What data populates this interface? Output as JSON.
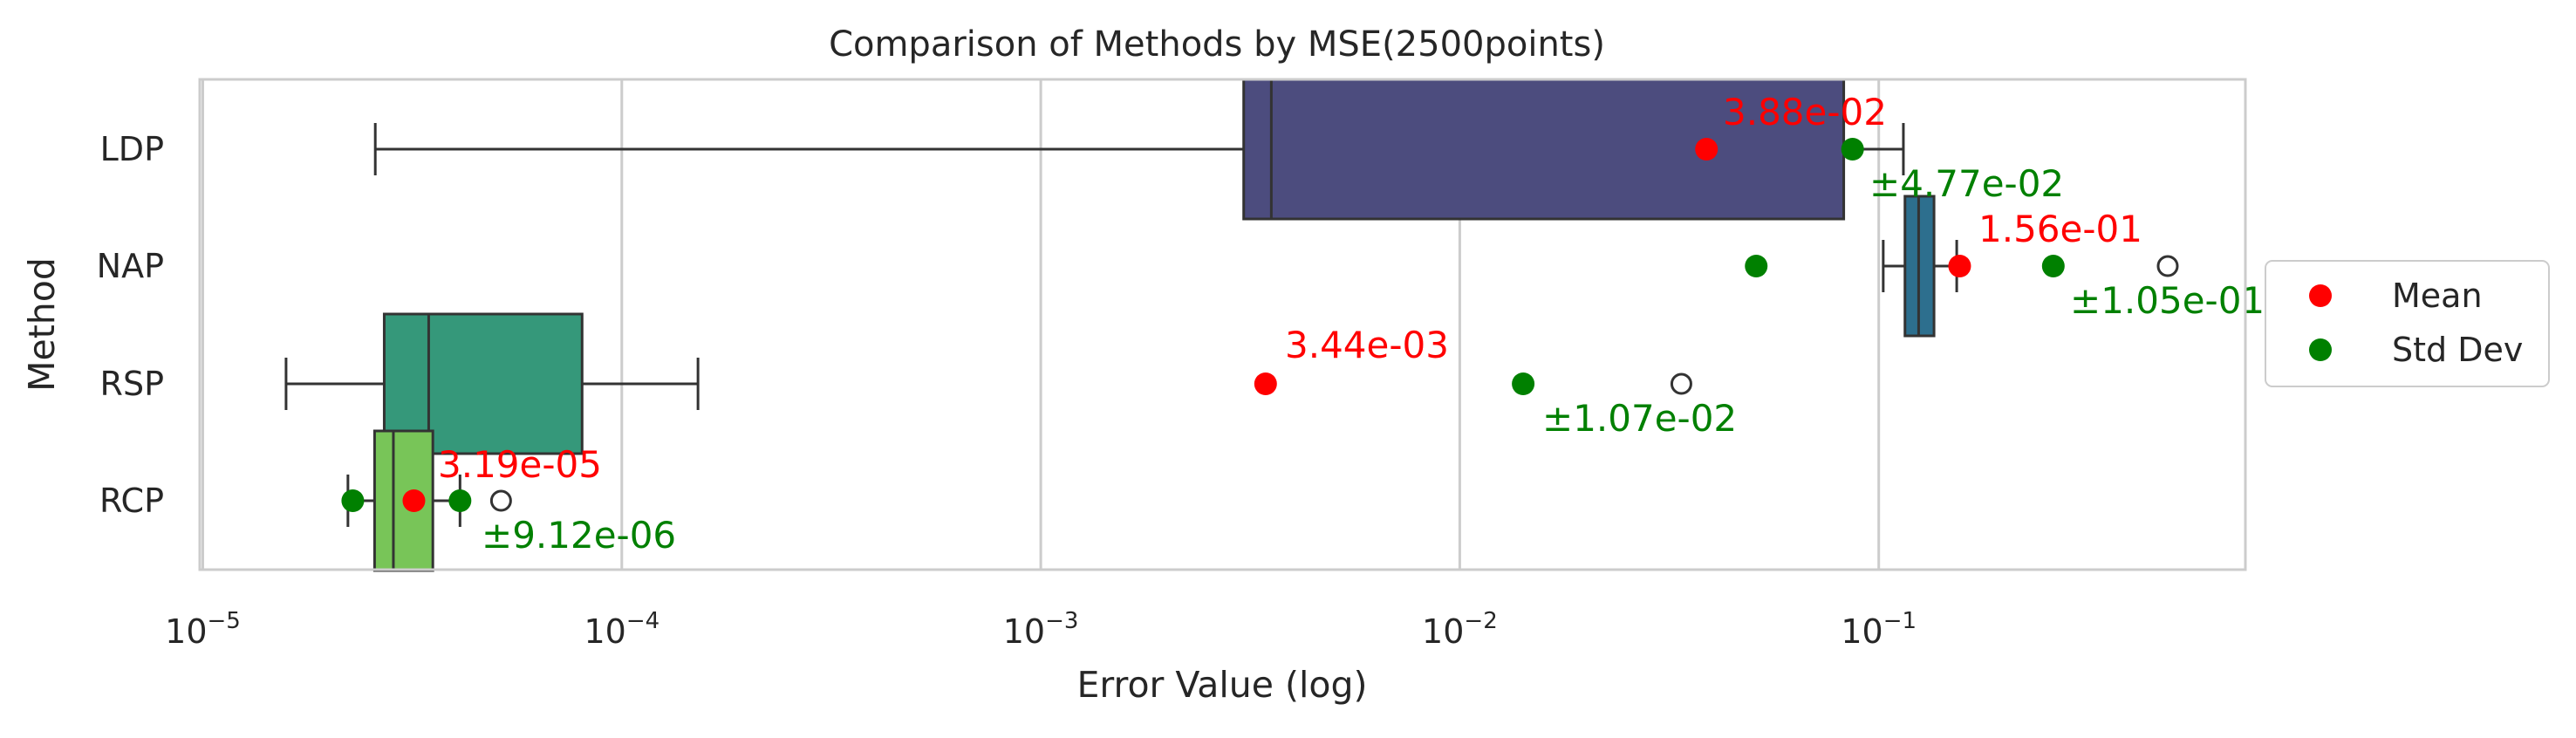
{
  "chart_data": {
    "type": "boxplot",
    "title": "Comparison of Methods by MSE(2500points)",
    "xlabel": "Error Value (log)",
    "ylabel": "Method",
    "xscale": "log",
    "xlim": [
      9.5e-06,
      0.9
    ],
    "x_ticks": [
      {
        "value": 1e-05,
        "base": "10",
        "exp": "−5"
      },
      {
        "value": 0.0001,
        "base": "10",
        "exp": "−4"
      },
      {
        "value": 0.001,
        "base": "10",
        "exp": "−3"
      },
      {
        "value": 0.01,
        "base": "10",
        "exp": "−2"
      },
      {
        "value": 0.1,
        "base": "10",
        "exp": "−1"
      }
    ],
    "grid": true,
    "legend_position": "right, outside",
    "legend": [
      {
        "label": "Mean",
        "color": "#ff0000"
      },
      {
        "label": "Std Dev",
        "color": "#008000"
      }
    ],
    "categories": [
      "LDP",
      "NAP",
      "RSP",
      "RCP"
    ],
    "boxes": [
      {
        "category": "LDP",
        "color": "#4c4c7e",
        "whisker_low": 2.58e-05,
        "q1": 0.00305,
        "median": 0.00355,
        "q3": 0.0825,
        "whisker_high": 0.1145,
        "outliers": [],
        "mean": 0.0388,
        "mean_label": "3.88e-02",
        "std_points": [
          0.0866
        ],
        "std_label": "±4.77e-02"
      },
      {
        "category": "NAP",
        "color": "#2d6f8e",
        "whisker_low": 0.1025,
        "q1": 0.1155,
        "median": 0.1245,
        "q3": 0.1355,
        "whisker_high": 0.1535,
        "outliers": [
          0.4895
        ],
        "mean": 0.156,
        "mean_label": "1.56e-01",
        "std_points": [
          0.051,
          0.261
        ],
        "std_label": "±1.05e-01"
      },
      {
        "category": "RSP",
        "color": "#35987a",
        "whisker_low": 1.58e-05,
        "q1": 2.71e-05,
        "median": 3.46e-05,
        "q3": 8.04e-05,
        "whisker_high": 0.000152,
        "outliers": [
          0.0338
        ],
        "mean": 0.00344,
        "mean_label": "3.44e-03",
        "std_points": [
          0.01417
        ],
        "std_label": "±1.07e-02"
      },
      {
        "category": "RCP",
        "color": "#78c558",
        "whisker_low": 2.22e-05,
        "q1": 2.57e-05,
        "median": 2.85e-05,
        "q3": 3.54e-05,
        "whisker_high": 4.11e-05,
        "outliers": [
          5.15e-05
        ],
        "mean": 3.19e-05,
        "mean_label": "3.19e-05",
        "std_points": [
          2.28e-05,
          4.11e-05
        ],
        "std_label": "±9.12e-06"
      }
    ]
  }
}
